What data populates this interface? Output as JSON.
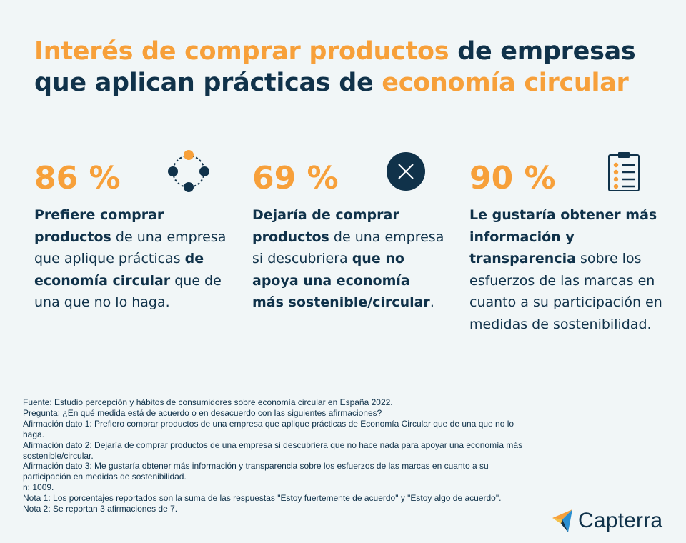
{
  "title": {
    "part1": "Interés de comprar productos",
    "part2": " de empresas que aplican prácticas de ",
    "part3": "economía circular"
  },
  "stats": [
    {
      "value": "86 %",
      "icon": "circular-nodes-icon",
      "segments": [
        {
          "text": "Prefiere comprar productos",
          "bold": true
        },
        {
          "text": " de una empresa que aplique prácticas ",
          "bold": false
        },
        {
          "text": "de economía circular",
          "bold": true
        },
        {
          "text": " que de una que no lo haga.",
          "bold": false
        }
      ]
    },
    {
      "value": "69 %",
      "icon": "x-circle-icon",
      "segments": [
        {
          "text": "Dejaría de comprar productos",
          "bold": true
        },
        {
          "text": " de una empresa si descubriera ",
          "bold": false
        },
        {
          "text": "que no apoya una economía más sostenible/circular",
          "bold": true
        },
        {
          "text": ".",
          "bold": false
        }
      ]
    },
    {
      "value": "90 %",
      "icon": "clipboard-checklist-icon",
      "segments": [
        {
          "text": "Le gustaría obtener más información y transparencia",
          "bold": true
        },
        {
          "text": " sobre los esfuerzos de las marcas en cuanto a su participación en medidas de sostenibilidad.",
          "bold": false
        }
      ]
    }
  ],
  "notes": [
    "Fuente: Estudio percepción y hábitos de consumidores sobre economía circular en España 2022.",
    "Pregunta: ¿En qué medida está de acuerdo o en desacuerdo con las siguientes afirmaciones?",
    "Afirmación dato 1: Prefiero comprar productos de una empresa que aplique prácticas de Economía Circular que de una que no lo haga.",
    "Afirmación dato 2: Dejaría de comprar productos de una empresa si descubriera que no hace nada para apoyar una economía más sostenible/circular.",
    "Afirmación dato 3: Me gustaría obtener más información y transparencia sobre los esfuerzos de las marcas en cuanto a su participación en medidas de sostenibilidad.",
    "n: 1009.",
    "Nota 1: Los porcentajes reportados son la suma de las respuestas \"Estoy fuertemente de acuerdo\" y \"Estoy algo de acuerdo\".",
    "Nota 2: Se reportan 3 afirmaciones de 7."
  ],
  "logo": {
    "text": "Capterra",
    "icon": "capterra-logo-icon"
  },
  "colors": {
    "accent": "#f7a03a",
    "navy": "#10324a",
    "background": "#f1f6f7"
  }
}
